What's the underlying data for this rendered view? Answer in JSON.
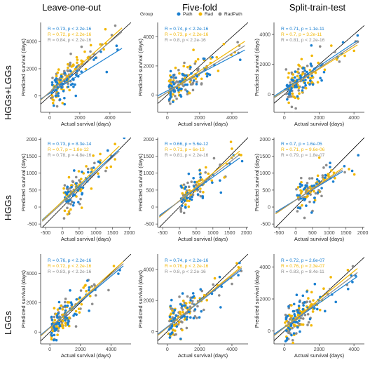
{
  "figure": {
    "column_titles": [
      "Leave-one-out",
      "Five-fold",
      "Split-train-test"
    ],
    "row_titles": [
      "HGGs+LGGs",
      "HGGs",
      "LGGs"
    ],
    "legend_title": "Group",
    "series_names": [
      "Path",
      "Rad",
      "RadPath"
    ],
    "series_colors": [
      "#1a7fd0",
      "#f2b705",
      "#8c8c8c"
    ],
    "xlabel": "Actual survival (days)",
    "ylabel": "Predicted survival (days)"
  },
  "chart_data": [
    {
      "type": "scatter",
      "row": 0,
      "col": 0,
      "xlabel": "Actual survival (days)",
      "ylabel": "Predicted survival (days)",
      "xlim": [
        -600,
        5400
      ],
      "ylim": [
        -1200,
        5400
      ],
      "xticks": [
        0,
        2000,
        4000
      ],
      "yticks": [
        0,
        2000,
        4000
      ],
      "stats": [
        "R = 0.73, p < 2.2e-16",
        "R = 0.72, p < 2.2e-16",
        "R = 0.84, p < 2.2e-16"
      ],
      "fits": [
        [
          -1000,
          -500,
          4800,
          3500
        ],
        [
          -1000,
          -700,
          4800,
          5000
        ],
        [
          -1000,
          -650,
          4800,
          4700
        ]
      ]
    },
    {
      "type": "scatter",
      "row": 0,
      "col": 1,
      "xlabel": "Actual survival (days)",
      "ylabel": "Predicted survival (days)",
      "xlim": [
        -600,
        5000
      ],
      "ylim": [
        -1200,
        5000
      ],
      "xticks": [
        0,
        2000,
        4000
      ],
      "yticks": [
        0,
        2000,
        4000
      ],
      "stats": [
        "R = 0.74, p < 2.2e-16",
        "R = 0.73, p < 2.2e-16",
        "R = 0.8, p < 2.2e-16"
      ],
      "fits": [
        [
          -1000,
          -300,
          4800,
          3100
        ],
        [
          -1000,
          -550,
          4800,
          3700
        ],
        [
          -1000,
          -500,
          4800,
          3400
        ]
      ]
    },
    {
      "type": "scatter",
      "row": 0,
      "col": 2,
      "xlabel": "Actual survival (days)",
      "ylabel": "Predicted survival (days)",
      "xlim": [
        -600,
        4600
      ],
      "ylim": [
        -1200,
        4800
      ],
      "xticks": [
        0,
        2000,
        4000
      ],
      "yticks": [
        0,
        2000,
        4000
      ],
      "stats": [
        "R = 0.71, p = 1.1e-11",
        "R = 0.7, p = 3.2e-11",
        "R = 0.81, p < 2.2e-16"
      ],
      "fits": [
        [
          -1000,
          -450,
          4200,
          3600
        ],
        [
          -1000,
          -500,
          4200,
          3300
        ],
        [
          -1000,
          -550,
          4200,
          3450
        ]
      ]
    },
    {
      "type": "scatter",
      "row": 1,
      "col": 0,
      "xlabel": "Actual survival (days)",
      "ylabel": "Predicted survival (days)",
      "xlim": [
        -650,
        2050
      ],
      "ylim": [
        -600,
        2050
      ],
      "xticks": [
        -500,
        0,
        500,
        1000,
        1500,
        2000
      ],
      "yticks": [
        -500,
        0,
        500,
        1000,
        1500,
        2000
      ],
      "stats": [
        "R = 0.73, p = 8.3e-14",
        "R = 0.7, p = 1.8e-12",
        "R = 0.78, p = 4.8e-16"
      ],
      "fits": [
        [
          -600,
          -380,
          1700,
          1700
        ],
        [
          -600,
          -400,
          1700,
          1800
        ],
        [
          -600,
          -420,
          1700,
          1650
        ]
      ]
    },
    {
      "type": "scatter",
      "row": 1,
      "col": 1,
      "xlabel": "Actual survival (days)",
      "ylabel": "Predicted survival (days)",
      "xlim": [
        -650,
        2050
      ],
      "ylim": [
        -600,
        2050
      ],
      "xticks": [
        -500,
        0,
        500,
        1000,
        1500,
        2000
      ],
      "yticks": [
        -500,
        0,
        500,
        1000,
        1500,
        2000
      ],
      "stats": [
        "R = 0.66, p = 5.6e-12",
        "R = 0.71, p = 6e-13",
        "R = 0.81, p < 2.2e-16"
      ],
      "fits": [
        [
          -600,
          -250,
          1800,
          1450
        ],
        [
          -600,
          -300,
          1800,
          1650
        ],
        [
          -600,
          -280,
          1800,
          1550
        ]
      ]
    },
    {
      "type": "scatter",
      "row": 1,
      "col": 2,
      "xlabel": "Actual survival (days)",
      "ylabel": "Predicted survival (days)",
      "xlim": [
        -650,
        2050
      ],
      "ylim": [
        -600,
        2050
      ],
      "xticks": [
        -500,
        0,
        500,
        1000,
        1500,
        2000
      ],
      "yticks": [
        -500,
        0,
        500,
        1000,
        1500,
        2000
      ],
      "stats": [
        "R = 0.7, p = 1.6e-05",
        "R = 0.71, p = 9.6e-06",
        "R = 0.79, p = 1.8e-07"
      ],
      "fits": [
        [
          -600,
          -150,
          1400,
          1050
        ],
        [
          -600,
          -200,
          1400,
          1150
        ],
        [
          -600,
          -180,
          1400,
          1100
        ]
      ]
    },
    {
      "type": "scatter",
      "row": 2,
      "col": 0,
      "xlabel": "Actual survival (days)",
      "ylabel": "Predicted survival (days)",
      "xlim": [
        -600,
        5300
      ],
      "ylim": [
        -800,
        5300
      ],
      "xticks": [
        0,
        2000,
        4000
      ],
      "yticks": [
        0,
        2000,
        4000
      ],
      "stats": [
        "R = 0.76, p < 2.2e-16",
        "R = 0.72, p < 2.2e-16",
        "R = 0.83, p < 2.2e-16"
      ],
      "fits": [
        [
          -1000,
          -550,
          4800,
          4500
        ],
        [
          -1000,
          -650,
          4800,
          4800
        ],
        [
          -1000,
          -600,
          4800,
          4650
        ]
      ]
    },
    {
      "type": "scatter",
      "row": 2,
      "col": 1,
      "xlabel": "Actual survival (days)",
      "ylabel": "Predicted survival (days)",
      "xlim": [
        -600,
        5000
      ],
      "ylim": [
        -800,
        5000
      ],
      "xticks": [
        0,
        2000,
        4000
      ],
      "yticks": [
        0,
        2000,
        4000
      ],
      "stats": [
        "R = 0.74, p < 2.2e-16",
        "R = 0.76, p < 2.2e-16",
        "R = 0.8, p < 2.2e-16"
      ],
      "fits": [
        [
          -1000,
          -500,
          4600,
          4000
        ],
        [
          -1000,
          -600,
          4600,
          4200
        ],
        [
          -1000,
          -550,
          4600,
          4100
        ]
      ]
    },
    {
      "type": "scatter",
      "row": 2,
      "col": 2,
      "xlabel": "Actual survival (days)",
      "ylabel": "Predicted survival (days)",
      "xlim": [
        -600,
        4600
      ],
      "ylim": [
        -800,
        4800
      ],
      "xticks": [
        0,
        2000,
        4000
      ],
      "yticks": [
        0,
        2000,
        4000
      ],
      "stats": [
        "R = 0.72, p = 2.6e-07",
        "R = 0.76, p = 2.3e-07",
        "R = 0.83, p = 8.4e-11"
      ],
      "fits": [
        [
          -1000,
          -500,
          4200,
          3400
        ],
        [
          -1000,
          -650,
          4200,
          3900
        ],
        [
          -1000,
          -600,
          4200,
          3650
        ]
      ]
    }
  ]
}
